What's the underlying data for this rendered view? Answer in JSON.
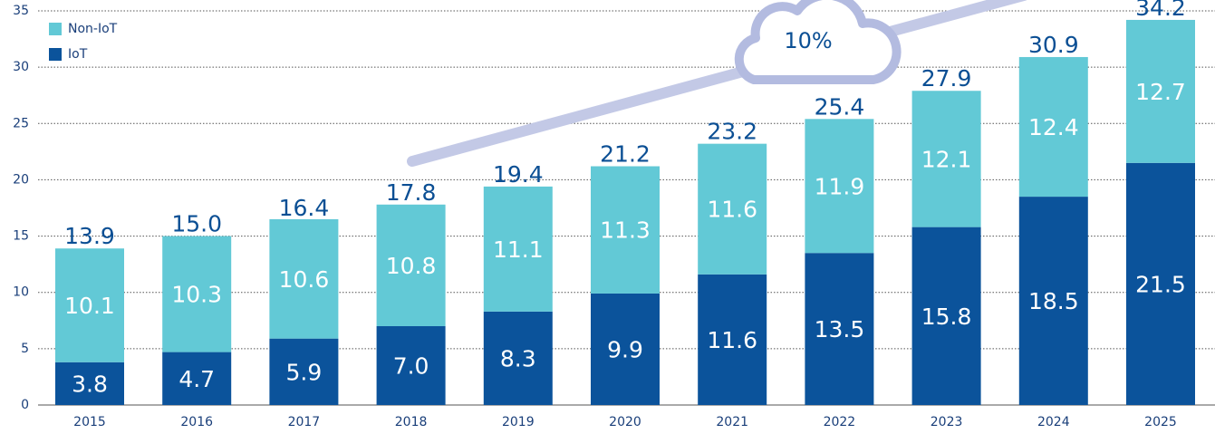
{
  "chart_data": {
    "type": "stacked_bar",
    "categories": [
      "2015",
      "2016",
      "2017",
      "2018",
      "2019",
      "2020",
      "2021",
      "2022",
      "2023",
      "2024",
      "2025"
    ],
    "series": [
      {
        "name": "Non-IoT",
        "color": "#62c9d6",
        "values": [
          10.1,
          10.3,
          10.6,
          10.8,
          11.1,
          11.3,
          11.6,
          11.9,
          12.1,
          12.4,
          12.7
        ],
        "value_labels": [
          "10.1",
          "10.3",
          "10.6",
          "10.8",
          "11.1",
          "11.3",
          "11.6",
          "11.9",
          "12.1",
          "12.4",
          "12.7"
        ]
      },
      {
        "name": "IoT",
        "color": "#0b539b",
        "values": [
          3.8,
          4.7,
          5.9,
          7.0,
          8.3,
          9.9,
          11.6,
          13.5,
          15.8,
          18.5,
          21.5
        ],
        "value_labels": [
          "3.8",
          "4.7",
          "5.9",
          "7.0",
          "8.3",
          "9.9",
          "11.6",
          "13.5",
          "15.8",
          "18.5",
          "21.5"
        ]
      }
    ],
    "totals": {
      "values": [
        13.9,
        15.0,
        16.4,
        17.8,
        19.4,
        21.2,
        23.2,
        25.4,
        27.9,
        30.9,
        34.2
      ],
      "value_labels": [
        "13.9",
        "15.0",
        "16.4",
        "17.8",
        "19.4",
        "21.2",
        "23.2",
        "25.4",
        "27.9",
        "30.9",
        "34.2"
      ]
    },
    "annotation": "10%",
    "ylim": [
      0,
      35
    ],
    "yticks": [
      0,
      5,
      10,
      15,
      20,
      25,
      30,
      35
    ],
    "grid": true,
    "legend": "top-left"
  }
}
